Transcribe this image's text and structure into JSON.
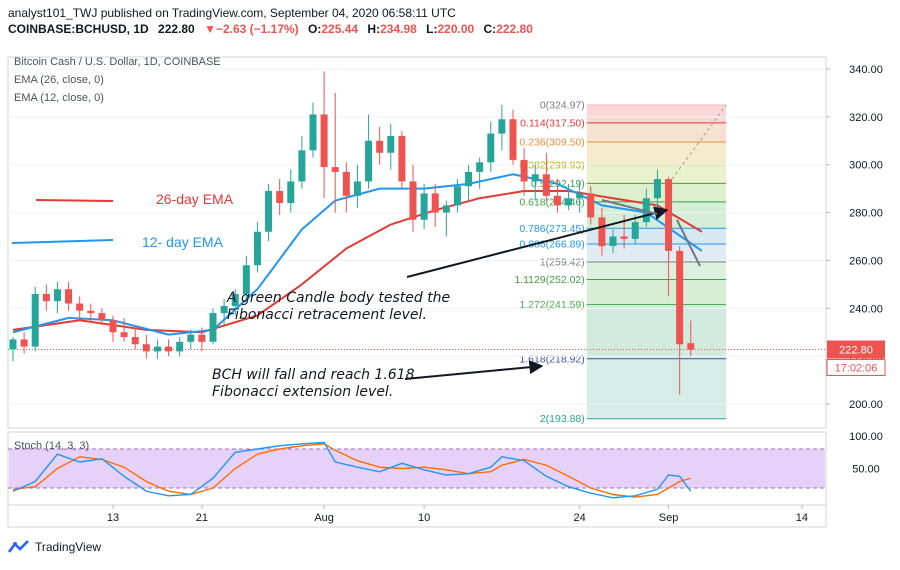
{
  "header": {
    "publisher_line": "analyst101_TWJ published on TradingView.com, September 04, 2020 06:58:11 UTC",
    "symbol": "COINBASE:BCHUSD, 1D",
    "last": "222.80",
    "change": "▼−2.63 (−1.17%)",
    "o_label": "O:",
    "o_val": "225.44",
    "h_label": "H:",
    "h_val": "234.98",
    "l_label": "L:",
    "l_val": "220.00",
    "c_label": "C:",
    "c_val": "222.80"
  },
  "legend": {
    "title": "Bitcoin Cash / U.S. Dollar, 1D, COINBASE",
    "ema26": "EMA (26, close, 0)",
    "ema12": "EMA (12, close, 0)",
    "stoch": "Stoch (14, 3, 3)"
  },
  "annotations": {
    "ema26_label": "26-day EMA",
    "ema12_label": "12- day EMA",
    "note1_line1": "A green Candle body tested the",
    "note1_line2": "Fibonacci retracement level.",
    "note2_line1": "BCH will fall and reach 1.618",
    "note2_line2": "Fibonacci extension level."
  },
  "price_tag": {
    "value": "222.80",
    "countdown": "17:02:06"
  },
  "footer": {
    "brand": "TradingView"
  },
  "colors": {
    "up": "#26a69a",
    "down": "#ef5350",
    "ema26": "#e53935",
    "ema12": "#2196f3",
    "stoch_k": "#2196f3",
    "stoch_d": "#ff6d00",
    "stoch_band": "#c89bf0"
  },
  "chart_data": {
    "type": "candlestick",
    "y_axis": {
      "min": 190,
      "max": 345,
      "ticks": [
        "340.00",
        "320.00",
        "300.00",
        "280.00",
        "260.00",
        "240.00",
        "220.00",
        "200.00"
      ]
    },
    "x_ticks": [
      "13",
      "21",
      "Aug",
      "10",
      "24",
      "Sep",
      "14"
    ],
    "x_tick_days": [
      13,
      21,
      32,
      41,
      55,
      63,
      75
    ],
    "day_range": [
      4,
      76
    ],
    "candles": [
      {
        "d": 4,
        "o": 223,
        "h": 228,
        "l": 218,
        "c": 227
      },
      {
        "d": 5,
        "o": 227,
        "h": 230,
        "l": 221,
        "c": 224
      },
      {
        "d": 6,
        "o": 224,
        "h": 249,
        "l": 222,
        "c": 246
      },
      {
        "d": 7,
        "o": 246,
        "h": 250,
        "l": 239,
        "c": 243
      },
      {
        "d": 8,
        "o": 243,
        "h": 251,
        "l": 238,
        "c": 248
      },
      {
        "d": 9,
        "o": 248,
        "h": 251,
        "l": 239,
        "c": 242
      },
      {
        "d": 10,
        "o": 242,
        "h": 245,
        "l": 235,
        "c": 239
      },
      {
        "d": 11,
        "o": 239,
        "h": 242,
        "l": 234,
        "c": 238
      },
      {
        "d": 12,
        "o": 238,
        "h": 240,
        "l": 233,
        "c": 235
      },
      {
        "d": 13,
        "o": 235,
        "h": 237,
        "l": 226,
        "c": 230
      },
      {
        "d": 14,
        "o": 230,
        "h": 236,
        "l": 226,
        "c": 228
      },
      {
        "d": 15,
        "o": 228,
        "h": 232,
        "l": 223,
        "c": 225
      },
      {
        "d": 16,
        "o": 225,
        "h": 229,
        "l": 219,
        "c": 222
      },
      {
        "d": 17,
        "o": 222,
        "h": 227,
        "l": 219,
        "c": 224
      },
      {
        "d": 18,
        "o": 224,
        "h": 227,
        "l": 220,
        "c": 222
      },
      {
        "d": 19,
        "o": 222,
        "h": 228,
        "l": 220,
        "c": 226
      },
      {
        "d": 20,
        "o": 226,
        "h": 231,
        "l": 223,
        "c": 229
      },
      {
        "d": 21,
        "o": 229,
        "h": 232,
        "l": 222,
        "c": 226
      },
      {
        "d": 22,
        "o": 226,
        "h": 240,
        "l": 225,
        "c": 238
      },
      {
        "d": 23,
        "o": 238,
        "h": 244,
        "l": 233,
        "c": 241
      },
      {
        "d": 24,
        "o": 241,
        "h": 248,
        "l": 237,
        "c": 246
      },
      {
        "d": 25,
        "o": 246,
        "h": 262,
        "l": 243,
        "c": 258
      },
      {
        "d": 26,
        "o": 258,
        "h": 276,
        "l": 255,
        "c": 272
      },
      {
        "d": 27,
        "o": 272,
        "h": 292,
        "l": 268,
        "c": 289
      },
      {
        "d": 28,
        "o": 289,
        "h": 294,
        "l": 279,
        "c": 284
      },
      {
        "d": 29,
        "o": 284,
        "h": 298,
        "l": 280,
        "c": 293
      },
      {
        "d": 30,
        "o": 293,
        "h": 312,
        "l": 290,
        "c": 306
      },
      {
        "d": 31,
        "o": 306,
        "h": 326,
        "l": 303,
        "c": 321
      },
      {
        "d": 32,
        "o": 321,
        "h": 339,
        "l": 286,
        "c": 299
      },
      {
        "d": 33,
        "o": 299,
        "h": 330,
        "l": 280,
        "c": 297
      },
      {
        "d": 34,
        "o": 297,
        "h": 301,
        "l": 280,
        "c": 287
      },
      {
        "d": 35,
        "o": 287,
        "h": 300,
        "l": 282,
        "c": 293
      },
      {
        "d": 36,
        "o": 293,
        "h": 321,
        "l": 290,
        "c": 310
      },
      {
        "d": 37,
        "o": 310,
        "h": 316,
        "l": 300,
        "c": 305
      },
      {
        "d": 38,
        "o": 305,
        "h": 317,
        "l": 298,
        "c": 312
      },
      {
        "d": 39,
        "o": 312,
        "h": 314,
        "l": 290,
        "c": 293
      },
      {
        "d": 40,
        "o": 293,
        "h": 300,
        "l": 272,
        "c": 277
      },
      {
        "d": 41,
        "o": 277,
        "h": 292,
        "l": 273,
        "c": 288
      },
      {
        "d": 42,
        "o": 288,
        "h": 292,
        "l": 274,
        "c": 280
      },
      {
        "d": 43,
        "o": 280,
        "h": 285,
        "l": 270,
        "c": 283
      },
      {
        "d": 44,
        "o": 283,
        "h": 294,
        "l": 280,
        "c": 291
      },
      {
        "d": 45,
        "o": 291,
        "h": 300,
        "l": 285,
        "c": 297
      },
      {
        "d": 46,
        "o": 297,
        "h": 303,
        "l": 290,
        "c": 301
      },
      {
        "d": 47,
        "o": 301,
        "h": 318,
        "l": 297,
        "c": 313
      },
      {
        "d": 48,
        "o": 313,
        "h": 325,
        "l": 306,
        "c": 319
      },
      {
        "d": 49,
        "o": 319,
        "h": 323,
        "l": 300,
        "c": 302
      },
      {
        "d": 50,
        "o": 302,
        "h": 307,
        "l": 287,
        "c": 293
      },
      {
        "d": 51,
        "o": 293,
        "h": 300,
        "l": 285,
        "c": 296
      },
      {
        "d": 52,
        "o": 296,
        "h": 305,
        "l": 285,
        "c": 287
      },
      {
        "d": 53,
        "o": 287,
        "h": 294,
        "l": 280,
        "c": 283
      },
      {
        "d": 54,
        "o": 283,
        "h": 292,
        "l": 281,
        "c": 286
      },
      {
        "d": 55,
        "o": 286,
        "h": 293,
        "l": 280,
        "c": 288
      },
      {
        "d": 56,
        "o": 288,
        "h": 291,
        "l": 275,
        "c": 278
      },
      {
        "d": 57,
        "o": 278,
        "h": 282,
        "l": 262,
        "c": 266
      },
      {
        "d": 58,
        "o": 266,
        "h": 273,
        "l": 263,
        "c": 270
      },
      {
        "d": 59,
        "o": 270,
        "h": 279,
        "l": 265,
        "c": 269
      },
      {
        "d": 60,
        "o": 269,
        "h": 279,
        "l": 267,
        "c": 276
      },
      {
        "d": 61,
        "o": 276,
        "h": 290,
        "l": 274,
        "c": 286
      },
      {
        "d": 62,
        "o": 286,
        "h": 298,
        "l": 277,
        "c": 294
      },
      {
        "d": 63,
        "o": 294,
        "h": 295,
        "l": 245,
        "c": 264
      },
      {
        "d": 64,
        "o": 264,
        "h": 266,
        "l": 204,
        "c": 225
      },
      {
        "d": 65,
        "o": 225.44,
        "h": 234.98,
        "l": 220,
        "c": 222.8
      }
    ],
    "ema26": [
      [
        4,
        231
      ],
      [
        10,
        235
      ],
      [
        16,
        231
      ],
      [
        21,
        230
      ],
      [
        26,
        237
      ],
      [
        30,
        250
      ],
      [
        34,
        265
      ],
      [
        38,
        275
      ],
      [
        42,
        281
      ],
      [
        46,
        286
      ],
      [
        50,
        289
      ],
      [
        54,
        289
      ],
      [
        58,
        286
      ],
      [
        62,
        283
      ],
      [
        66,
        272
      ]
    ],
    "ema12": [
      [
        4,
        230
      ],
      [
        9,
        236
      ],
      [
        13,
        235
      ],
      [
        18,
        229
      ],
      [
        22,
        231
      ],
      [
        26,
        248
      ],
      [
        30,
        273
      ],
      [
        33,
        285
      ],
      [
        37,
        290
      ],
      [
        41,
        290
      ],
      [
        45,
        292
      ],
      [
        49,
        296
      ],
      [
        53,
        292
      ],
      [
        57,
        283
      ],
      [
        61,
        280
      ],
      [
        66,
        264
      ]
    ],
    "fib": {
      "d_start": 56,
      "d_end": 68,
      "levels": [
        {
          "label": "0(324.97)",
          "value": 324.97,
          "color": "#f7b4b4"
        },
        {
          "label": "0.114(317.50)",
          "value": 317.5,
          "color": "#e53935"
        },
        {
          "label": "0.236(309.50)",
          "value": 309.5,
          "color": "#e69138"
        },
        {
          "label": "0.382(299.93)",
          "value": 299.93,
          "color": "#b7b700"
        },
        {
          "label": "0.5(292.19)",
          "value": 292.19,
          "color": "#43a047"
        },
        {
          "label": "0.618(284.46)",
          "value": 284.46,
          "color": "#43a047"
        },
        {
          "label": "0.786(273.45)",
          "value": 273.45,
          "color": "#2196f3"
        },
        {
          "label": "0.886(266.89)",
          "value": 266.89,
          "color": "#2196f3"
        },
        {
          "label": "1(259.42)",
          "value": 259.42,
          "color": "#787b86"
        },
        {
          "label": "1.1129(252.02)",
          "value": 252.02,
          "color": "#43a047"
        },
        {
          "label": "1.272(241.59)",
          "value": 241.59,
          "color": "#4caf50"
        },
        {
          "label": "1.618(218.92)",
          "value": 218.92,
          "color": "#3f51b5"
        },
        {
          "label": "2(193.88)",
          "value": 193.88,
          "color": "#26a69a"
        }
      ]
    },
    "stoch": {
      "y_ticks": [
        "100.00",
        "50.00"
      ],
      "band": [
        20,
        80
      ],
      "k": [
        [
          4,
          15
        ],
        [
          6,
          30
        ],
        [
          8,
          72
        ],
        [
          10,
          60
        ],
        [
          12,
          65
        ],
        [
          14,
          38
        ],
        [
          16,
          15
        ],
        [
          18,
          8
        ],
        [
          20,
          10
        ],
        [
          22,
          35
        ],
        [
          24,
          75
        ],
        [
          26,
          80
        ],
        [
          28,
          85
        ],
        [
          30,
          88
        ],
        [
          32,
          90
        ],
        [
          33,
          60
        ],
        [
          35,
          52
        ],
        [
          37,
          45
        ],
        [
          39,
          58
        ],
        [
          41,
          48
        ],
        [
          43,
          40
        ],
        [
          45,
          42
        ],
        [
          47,
          52
        ],
        [
          48,
          68
        ],
        [
          50,
          62
        ],
        [
          52,
          38
        ],
        [
          54,
          22
        ],
        [
          56,
          12
        ],
        [
          58,
          5
        ],
        [
          60,
          8
        ],
        [
          62,
          18
        ],
        [
          63,
          40
        ],
        [
          64,
          38
        ],
        [
          65,
          15
        ]
      ],
      "d": [
        [
          4,
          18
        ],
        [
          6,
          22
        ],
        [
          8,
          50
        ],
        [
          10,
          68
        ],
        [
          12,
          64
        ],
        [
          14,
          52
        ],
        [
          16,
          30
        ],
        [
          18,
          15
        ],
        [
          20,
          10
        ],
        [
          22,
          20
        ],
        [
          24,
          50
        ],
        [
          26,
          72
        ],
        [
          28,
          80
        ],
        [
          30,
          85
        ],
        [
          32,
          88
        ],
        [
          33,
          78
        ],
        [
          35,
          62
        ],
        [
          37,
          52
        ],
        [
          39,
          50
        ],
        [
          41,
          52
        ],
        [
          43,
          48
        ],
        [
          45,
          42
        ],
        [
          47,
          45
        ],
        [
          48,
          55
        ],
        [
          50,
          64
        ],
        [
          52,
          55
        ],
        [
          54,
          38
        ],
        [
          56,
          20
        ],
        [
          58,
          10
        ],
        [
          60,
          6
        ],
        [
          62,
          10
        ],
        [
          63,
          20
        ],
        [
          64,
          30
        ],
        [
          65,
          35
        ]
      ]
    }
  }
}
